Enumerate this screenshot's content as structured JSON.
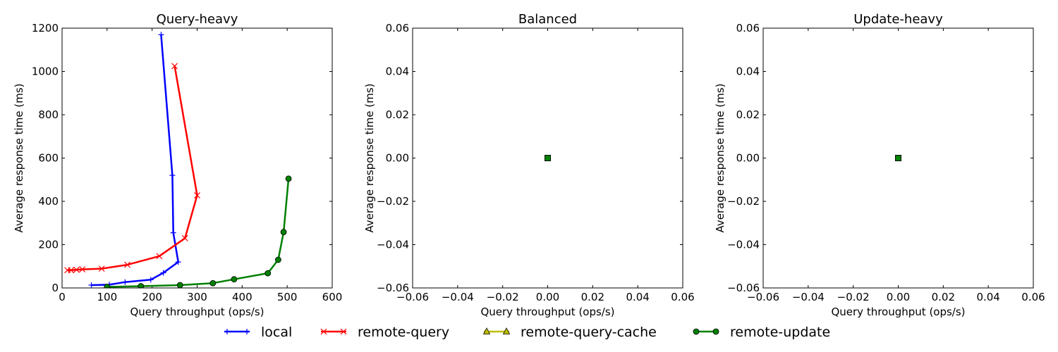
{
  "legend": [
    {
      "series": "local",
      "label": "local"
    },
    {
      "series": "remote-query",
      "label": "remote-query"
    },
    {
      "series": "remote-query-cache",
      "label": "remote-query-cache"
    },
    {
      "series": "remote-update",
      "label": "remote-update"
    }
  ],
  "styles": {
    "local": {
      "color": "#0000ff",
      "marker": "plus"
    },
    "remote-query": {
      "color": "#ff0000",
      "marker": "x"
    },
    "remote-query-cache": {
      "color": "#bfbf00",
      "marker": "triangle"
    },
    "remote-update": {
      "color": "#008000",
      "marker": "circle"
    }
  },
  "chart_data": [
    {
      "type": "line",
      "title": "Query-heavy",
      "xlabel": "Query throughput (ops/s)",
      "ylabel": "Average response time (ms)",
      "xlim": [
        0,
        600
      ],
      "ylim": [
        0,
        1200
      ],
      "xticks": [
        0,
        100,
        200,
        300,
        400,
        500,
        600
      ],
      "yticks": [
        0,
        200,
        400,
        600,
        800,
        1000,
        1200
      ],
      "xtick_labels": [
        "0",
        "100",
        "200",
        "300",
        "400",
        "500",
        "600"
      ],
      "ytick_labels": [
        "0",
        "200",
        "400",
        "600",
        "800",
        "1000",
        "1200"
      ],
      "grid": false,
      "series": [
        {
          "name": "local",
          "x": [
            65,
            105,
            140,
            197,
            225,
            258,
            247,
            245,
            220
          ],
          "y": [
            13,
            15,
            27,
            38,
            70,
            120,
            255,
            520,
            1170
          ]
        },
        {
          "name": "remote-query",
          "x": [
            12,
            20,
            32,
            45,
            88,
            145,
            216,
            273,
            300,
            250
          ],
          "y": [
            82,
            82,
            84,
            86,
            89,
            107,
            147,
            230,
            428,
            1025
          ]
        },
        {
          "name": "remote-query-cache",
          "x": [],
          "y": []
        },
        {
          "name": "remote-update",
          "x": [
            100,
            175,
            262,
            335,
            382,
            457,
            480,
            492,
            503
          ],
          "y": [
            5,
            8,
            13,
            22,
            40,
            68,
            130,
            258,
            505
          ]
        }
      ]
    },
    {
      "type": "line",
      "title": "Balanced",
      "xlabel": "Query throughput (ops/s)",
      "ylabel": "Average response time (ms)",
      "xlim": [
        -0.06,
        0.06
      ],
      "ylim": [
        -0.06,
        0.06
      ],
      "xticks": [
        -0.06,
        -0.04,
        -0.02,
        0.0,
        0.02,
        0.04,
        0.06
      ],
      "yticks": [
        -0.06,
        -0.04,
        -0.02,
        0.0,
        0.02,
        0.04,
        0.06
      ],
      "xtick_labels": [
        "−0.06",
        "−0.04",
        "−0.02",
        "0.00",
        "0.02",
        "0.04",
        "0.06"
      ],
      "ytick_labels": [
        "−0.06",
        "−0.04",
        "−0.02",
        "0.00",
        "0.02",
        "0.04",
        "0.06"
      ],
      "grid": false,
      "series": [
        {
          "name": "local",
          "x": [
            0
          ],
          "y": [
            0
          ]
        },
        {
          "name": "remote-query",
          "x": [
            0
          ],
          "y": [
            0
          ]
        },
        {
          "name": "remote-query-cache",
          "x": [
            0
          ],
          "y": [
            0
          ]
        },
        {
          "name": "remote-update",
          "x": [
            0
          ],
          "y": [
            0
          ]
        }
      ]
    },
    {
      "type": "line",
      "title": "Update-heavy",
      "xlabel": "Query throughput (ops/s)",
      "ylabel": "Average response time (ms)",
      "xlim": [
        -0.06,
        0.06
      ],
      "ylim": [
        -0.06,
        0.06
      ],
      "xticks": [
        -0.06,
        -0.04,
        -0.02,
        0.0,
        0.02,
        0.04,
        0.06
      ],
      "yticks": [
        -0.06,
        -0.04,
        -0.02,
        0.0,
        0.02,
        0.04,
        0.06
      ],
      "xtick_labels": [
        "−0.06",
        "−0.04",
        "−0.02",
        "0.00",
        "0.02",
        "0.04",
        "0.06"
      ],
      "ytick_labels": [
        "−0.06",
        "−0.04",
        "−0.02",
        "0.00",
        "0.02",
        "0.04",
        "0.06"
      ],
      "grid": false,
      "series": [
        {
          "name": "local",
          "x": [
            0
          ],
          "y": [
            0
          ]
        },
        {
          "name": "remote-query",
          "x": [
            0
          ],
          "y": [
            0
          ]
        },
        {
          "name": "remote-query-cache",
          "x": [
            0
          ],
          "y": [
            0
          ]
        },
        {
          "name": "remote-update",
          "x": [
            0
          ],
          "y": [
            0
          ]
        }
      ]
    }
  ]
}
